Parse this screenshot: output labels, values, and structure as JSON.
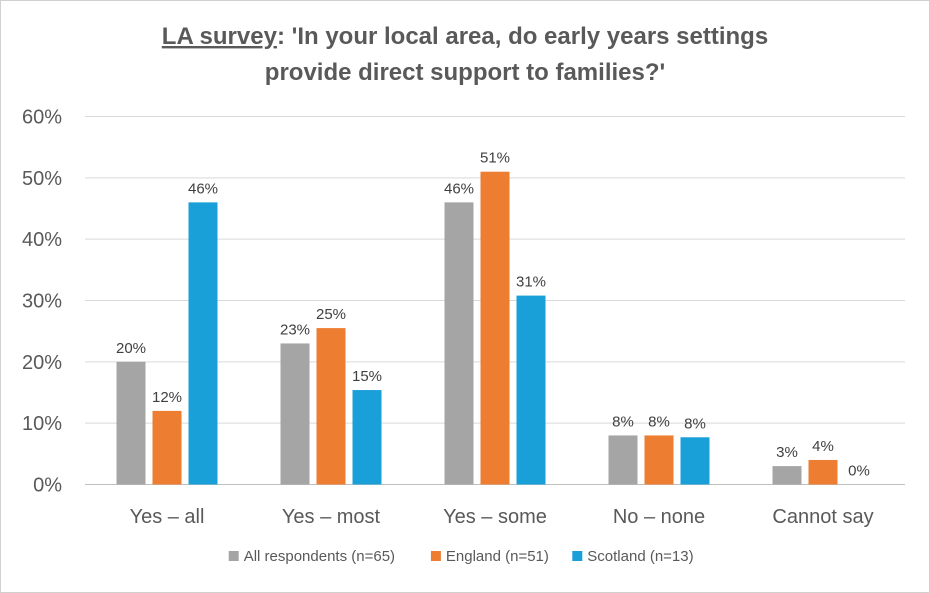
{
  "chart_data": {
    "type": "bar",
    "title": {
      "underlined_part": "LA survey",
      "line1_rest": ": 'In your local area, do early years settings",
      "line2": "provide direct support to families?'"
    },
    "categories": [
      "Yes – all",
      "Yes – most",
      "Yes – some",
      "No – none",
      "Cannot say"
    ],
    "series": [
      {
        "name": "All respondents (n=65)",
        "color": "#a5a5a5",
        "values": [
          20,
          23,
          46,
          8,
          3
        ],
        "labels": [
          "20%",
          "23%",
          "46%",
          "8%",
          "3%"
        ]
      },
      {
        "name": "England (n=51)",
        "color": "#ed7d31",
        "values": [
          12,
          25.5,
          51,
          8,
          4
        ],
        "labels": [
          "12%",
          "25%",
          "51%",
          "8%",
          "4%"
        ]
      },
      {
        "name": "Scotland (n=13)",
        "color": "#1aa0d8",
        "values": [
          46,
          15.4,
          30.8,
          7.7,
          0
        ],
        "labels": [
          "46%",
          "15%",
          "31%",
          "8%",
          "0%"
        ]
      }
    ],
    "ylim": [
      0,
      60
    ],
    "yticks": [
      0,
      10,
      20,
      30,
      40,
      50,
      60
    ],
    "ytick_labels": [
      "0%",
      "10%",
      "20%",
      "30%",
      "40%",
      "50%",
      "60%"
    ],
    "grid": true,
    "legend_position": "bottom"
  }
}
